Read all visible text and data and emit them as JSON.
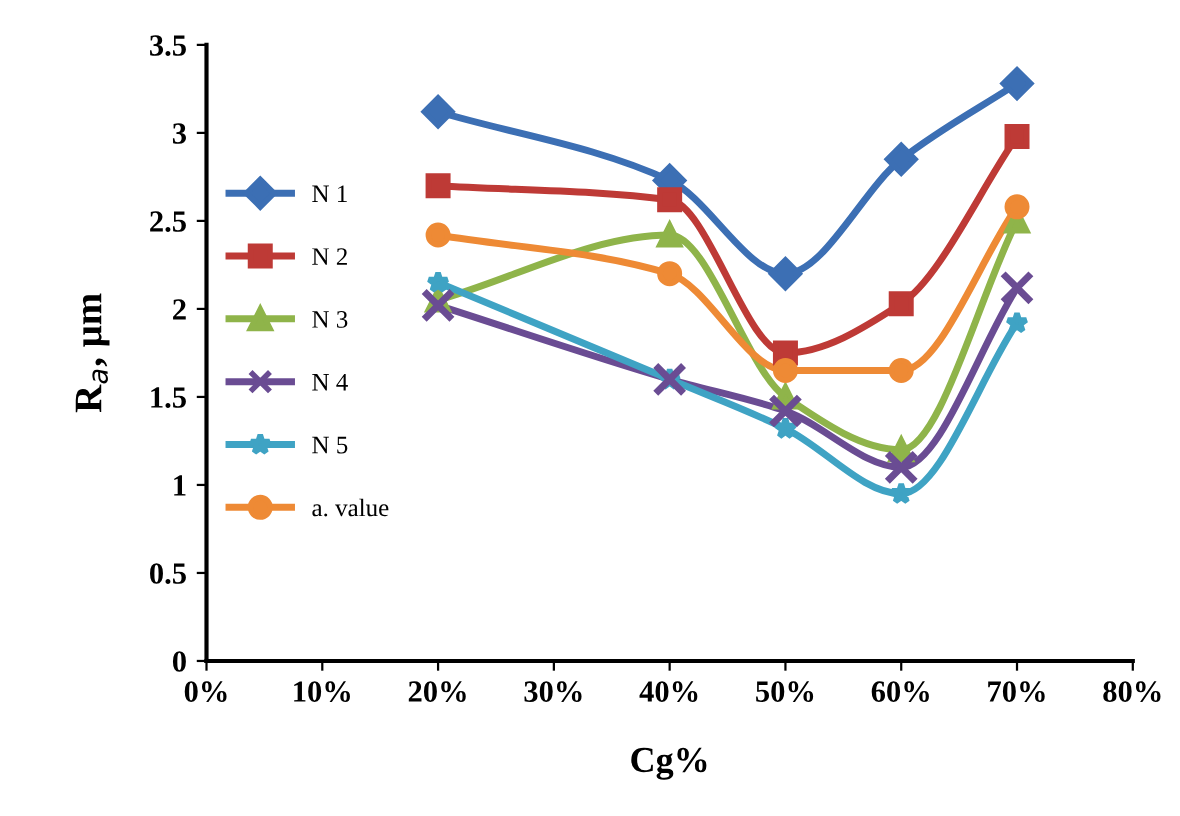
{
  "chart_data": {
    "type": "line",
    "xlabel": "Cg%",
    "ylabel": "R$_{a}$, μm",
    "x": [
      20,
      40,
      50,
      60,
      70
    ],
    "xlim": [
      0,
      80
    ],
    "xticks": [
      {
        "value": 0,
        "label": "0%"
      },
      {
        "value": 10,
        "label": "10%"
      },
      {
        "value": 20,
        "label": "20%"
      },
      {
        "value": 30,
        "label": "30%"
      },
      {
        "value": 40,
        "label": "40%"
      },
      {
        "value": 50,
        "label": "50%"
      },
      {
        "value": 60,
        "label": "60%"
      },
      {
        "value": 70,
        "label": "70%"
      },
      {
        "value": 80,
        "label": "80%"
      }
    ],
    "ylim": [
      0,
      3.5
    ],
    "yticks": [
      0,
      0.5,
      1,
      1.5,
      2,
      2.5,
      3,
      3.5
    ],
    "grid": false,
    "legend": "left",
    "series": [
      {
        "name": "N 1",
        "color": "#3c6fb4",
        "marker": "diamond",
        "values": [
          3.12,
          2.73,
          2.2,
          2.85,
          3.28
        ]
      },
      {
        "name": "N 2",
        "color": "#be3a36",
        "marker": "square",
        "values": [
          2.7,
          2.62,
          1.75,
          2.03,
          2.98
        ]
      },
      {
        "name": "N 3",
        "color": "#8fb44a",
        "marker": "triangle",
        "values": [
          2.05,
          2.42,
          1.5,
          1.2,
          2.5
        ]
      },
      {
        "name": "N 4",
        "color": "#6a4c93",
        "marker": "cross",
        "values": [
          2.02,
          1.6,
          1.42,
          1.1,
          2.12
        ]
      },
      {
        "name": "N 5",
        "color": "#3fa3c4",
        "marker": "star",
        "values": [
          2.15,
          1.6,
          1.32,
          0.95,
          1.92
        ]
      },
      {
        "name": "a. value",
        "color": "#ee8a35",
        "marker": "circle",
        "values": [
          2.42,
          2.2,
          1.65,
          1.65,
          2.58
        ]
      }
    ]
  }
}
